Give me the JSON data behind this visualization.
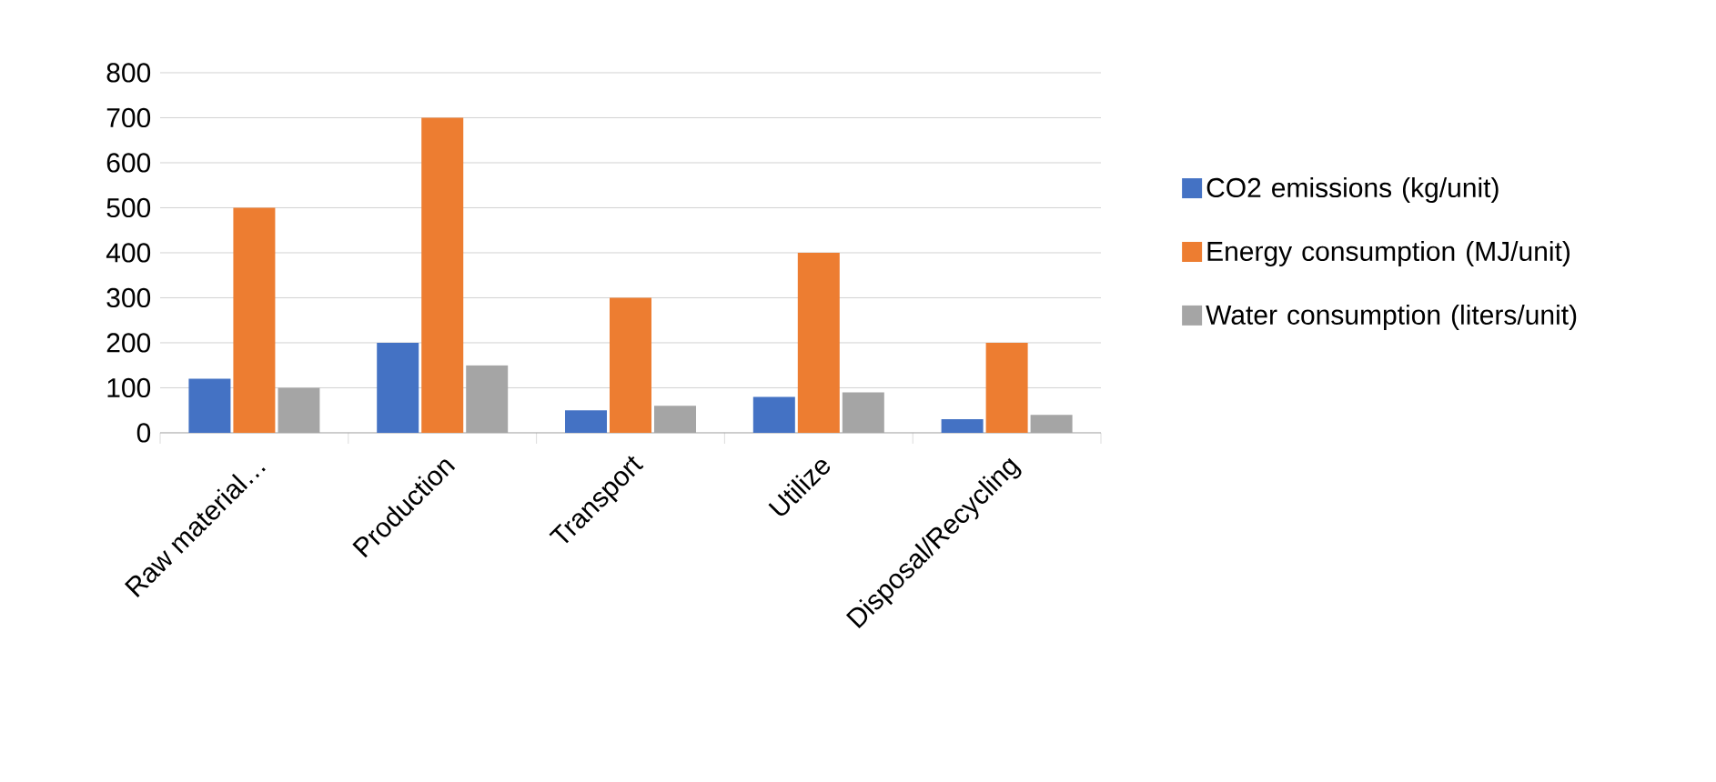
{
  "chart_data": {
    "type": "bar",
    "categories": [
      "Raw material…",
      "Production",
      "Transport",
      "Utilize",
      "Disposal/Recycling"
    ],
    "series": [
      {
        "name": "CO2 emissions (kg/unit)",
        "color": "#4472c4",
        "values": [
          120,
          200,
          50,
          80,
          30
        ]
      },
      {
        "name": "Energy consumption (MJ/unit)",
        "color": "#ed7d31",
        "values": [
          500,
          700,
          300,
          400,
          200
        ]
      },
      {
        "name": "Water consumption (liters/unit)",
        "color": "#a5a5a5",
        "values": [
          100,
          150,
          60,
          90,
          40
        ]
      }
    ],
    "ylim": [
      0,
      800
    ],
    "yticks": [
      0,
      100,
      200,
      300,
      400,
      500,
      600,
      700,
      800
    ],
    "grid": "y",
    "legend": "right"
  }
}
